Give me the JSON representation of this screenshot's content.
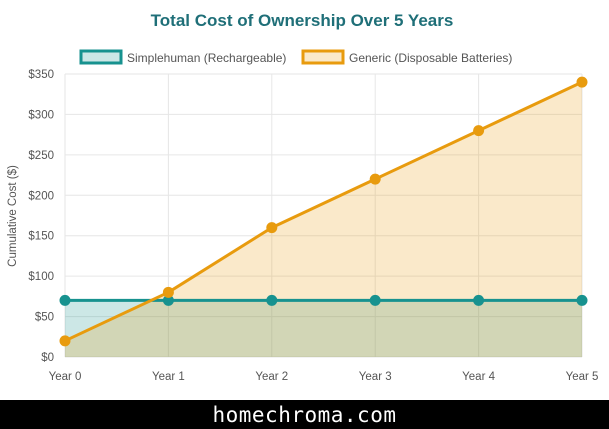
{
  "colors": {
    "series1": "#17928f",
    "series1_fill": "rgba(23,146,143,0.22)",
    "series2": "#e89b0e",
    "series2_fill": "rgba(232,155,14,0.22)",
    "grid": "#e6e6e6",
    "title": "#1f6f78"
  },
  "chart_data": {
    "type": "line",
    "title": "Total Cost of Ownership Over 5 Years",
    "xlabel": "",
    "ylabel": "Cumulative Cost ($)",
    "categories": [
      "Year 0",
      "Year 1",
      "Year 2",
      "Year 3",
      "Year 4",
      "Year 5"
    ],
    "ylim": [
      0,
      350
    ],
    "yticks": [
      "$0",
      "$50",
      "$100",
      "$150",
      "$200",
      "$250",
      "$300",
      "$350"
    ],
    "ytick_values": [
      0,
      50,
      100,
      150,
      200,
      250,
      300,
      350
    ],
    "grid": true,
    "legend": "top",
    "series": [
      {
        "name": "Simplehuman (Rechargeable)",
        "values": [
          70,
          70,
          70,
          70,
          70,
          70
        ],
        "filled": true
      },
      {
        "name": "Generic (Disposable Batteries)",
        "values": [
          20,
          80,
          160,
          220,
          280,
          340
        ],
        "filled": true
      }
    ]
  },
  "footer": {
    "text": "homechroma.com"
  }
}
